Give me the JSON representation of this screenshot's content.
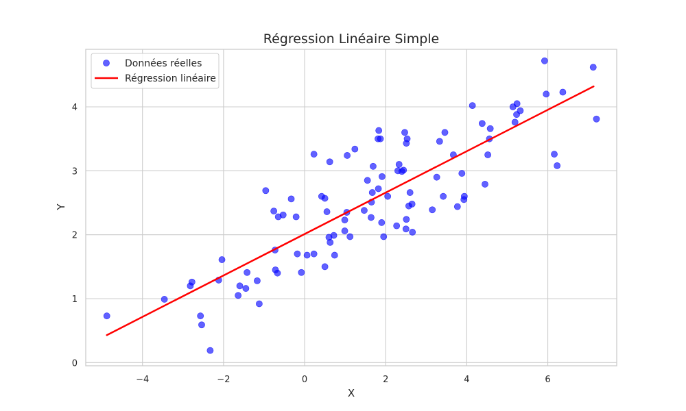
{
  "chart_data": {
    "type": "scatter",
    "title": "Régression Linéaire Simple",
    "xlabel": "X",
    "ylabel": "Y",
    "xlim": [
      -5.4,
      7.7
    ],
    "ylim": [
      -0.05,
      4.9
    ],
    "xticks": [
      -4,
      -2,
      0,
      2,
      4,
      6
    ],
    "yticks": [
      0,
      1,
      2,
      3,
      4
    ],
    "grid": true,
    "legend_position": "top-left",
    "series": [
      {
        "name": "Données réelles",
        "kind": "scatter",
        "color": "#0000ff",
        "points": [
          [
            -4.88,
            0.73
          ],
          [
            -3.46,
            0.99
          ],
          [
            -2.82,
            1.2
          ],
          [
            -2.78,
            1.26
          ],
          [
            -2.57,
            0.73
          ],
          [
            -2.54,
            0.59
          ],
          [
            -2.33,
            0.19
          ],
          [
            -2.12,
            1.29
          ],
          [
            -2.04,
            1.61
          ],
          [
            -1.64,
            1.05
          ],
          [
            -1.6,
            1.2
          ],
          [
            -1.45,
            1.16
          ],
          [
            -1.42,
            1.41
          ],
          [
            -1.17,
            1.28
          ],
          [
            -1.12,
            0.92
          ],
          [
            -0.96,
            2.69
          ],
          [
            -0.76,
            2.37
          ],
          [
            -0.73,
            1.76
          ],
          [
            -0.72,
            1.45
          ],
          [
            -0.67,
            1.4
          ],
          [
            -0.65,
            2.28
          ],
          [
            -0.53,
            2.31
          ],
          [
            -0.33,
            2.56
          ],
          [
            -0.21,
            2.28
          ],
          [
            -0.18,
            1.7
          ],
          [
            -0.08,
            1.41
          ],
          [
            0.06,
            1.68
          ],
          [
            0.23,
            1.7
          ],
          [
            0.23,
            3.26
          ],
          [
            0.42,
            2.6
          ],
          [
            0.5,
            2.57
          ],
          [
            0.5,
            1.5
          ],
          [
            0.55,
            2.36
          ],
          [
            0.6,
            1.96
          ],
          [
            0.62,
            3.14
          ],
          [
            0.63,
            1.88
          ],
          [
            0.72,
            1.99
          ],
          [
            0.74,
            1.68
          ],
          [
            0.99,
            2.06
          ],
          [
            0.99,
            2.23
          ],
          [
            1.04,
            2.35
          ],
          [
            1.05,
            3.24
          ],
          [
            1.12,
            1.97
          ],
          [
            1.24,
            3.34
          ],
          [
            1.47,
            2.38
          ],
          [
            1.55,
            2.85
          ],
          [
            1.64,
            2.27
          ],
          [
            1.65,
            2.51
          ],
          [
            1.67,
            2.66
          ],
          [
            1.69,
            3.07
          ],
          [
            1.81,
            3.5
          ],
          [
            1.82,
            2.72
          ],
          [
            1.83,
            3.63
          ],
          [
            1.87,
            3.5
          ],
          [
            1.9,
            2.19
          ],
          [
            1.91,
            2.91
          ],
          [
            1.95,
            1.97
          ],
          [
            2.05,
            2.6
          ],
          [
            2.27,
            2.14
          ],
          [
            2.3,
            3.0
          ],
          [
            2.33,
            3.1
          ],
          [
            2.4,
            2.99
          ],
          [
            2.44,
            3.01
          ],
          [
            2.47,
            3.6
          ],
          [
            2.5,
            2.09
          ],
          [
            2.51,
            2.24
          ],
          [
            2.51,
            3.43
          ],
          [
            2.53,
            3.5
          ],
          [
            2.57,
            2.45
          ],
          [
            2.6,
            2.66
          ],
          [
            2.65,
            2.48
          ],
          [
            2.66,
            2.04
          ],
          [
            3.15,
            2.39
          ],
          [
            3.26,
            2.9
          ],
          [
            3.33,
            3.46
          ],
          [
            3.42,
            2.6
          ],
          [
            3.46,
            3.6
          ],
          [
            3.67,
            3.25
          ],
          [
            3.77,
            2.44
          ],
          [
            3.88,
            2.96
          ],
          [
            3.93,
            2.55
          ],
          [
            3.94,
            2.6
          ],
          [
            4.14,
            4.02
          ],
          [
            4.38,
            3.74
          ],
          [
            4.45,
            2.79
          ],
          [
            4.52,
            3.25
          ],
          [
            4.56,
            3.5
          ],
          [
            4.58,
            3.66
          ],
          [
            5.14,
            4.0
          ],
          [
            5.19,
            3.76
          ],
          [
            5.23,
            3.88
          ],
          [
            5.24,
            4.05
          ],
          [
            5.32,
            3.94
          ],
          [
            5.92,
            4.72
          ],
          [
            5.96,
            4.2
          ],
          [
            6.16,
            3.26
          ],
          [
            6.23,
            3.08
          ],
          [
            6.37,
            4.23
          ],
          [
            7.12,
            4.62
          ],
          [
            7.2,
            3.81
          ]
        ]
      },
      {
        "name": "Régression linéaire",
        "kind": "line",
        "color": "#ff0000",
        "x": [
          -4.88,
          7.13
        ],
        "y": [
          0.43,
          4.32
        ]
      }
    ]
  }
}
